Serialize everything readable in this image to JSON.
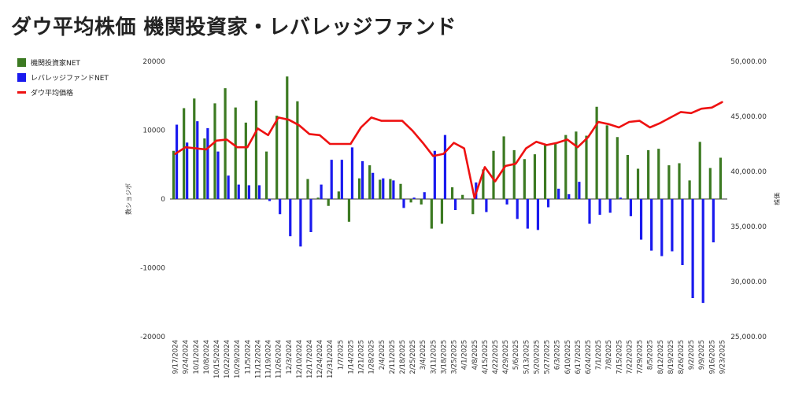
{
  "title": "ダウ平均株価 機関投資家・レバレッジファンド",
  "colors": {
    "institutional": "#3c7a22",
    "leveraged": "#1a1aee",
    "dow": "#ee1111"
  },
  "chart_data": {
    "type": "bar+line",
    "title": "ダウ平均株価 機関投資家・レバレッジファンド",
    "ylabel_left": "数ショジボ",
    "ylabel_right": "株価",
    "y_left_range": [
      -20000,
      20000
    ],
    "y_left_ticks": [
      "20000",
      "10000",
      "0",
      "-10000",
      "-20000"
    ],
    "y_right_range": [
      25000,
      50000
    ],
    "y_right_ticks": [
      "50,000.00",
      "45,000.00",
      "40,000.00",
      "35,000.00",
      "30,000.00",
      "25,000.00"
    ],
    "legend_position": "left",
    "categories": [
      "9/17/2024",
      "9/24/2024",
      "10/1/2024",
      "10/8/2024",
      "10/15/2024",
      "10/22/2024",
      "10/29/2024",
      "11/5/2024",
      "11/12/2024",
      "11/19/2024",
      "11/26/2024",
      "12/3/2024",
      "12/10/2024",
      "12/17/2024",
      "12/24/2024",
      "12/31/2024",
      "1/7/2025",
      "1/14/2025",
      "1/21/2025",
      "1/28/2025",
      "2/4/2025",
      "2/11/2025",
      "2/18/2025",
      "2/25/2025",
      "3/4/2025",
      "3/11/2025",
      "3/18/2025",
      "3/25/2025",
      "4/1/2025",
      "4/8/2025",
      "4/15/2025",
      "4/22/2025",
      "4/29/2025",
      "5/6/2025",
      "5/13/2025",
      "5/20/2025",
      "5/27/2025",
      "6/3/2025",
      "6/10/2025",
      "6/17/2025",
      "6/24/2025",
      "7/1/2025",
      "7/8/2025",
      "7/15/2025",
      "7/22/2025",
      "7/29/2025",
      "8/5/2025",
      "8/12/2025",
      "8/19/2025",
      "8/26/2025",
      "9/2/2025",
      "9/9/2025",
      "9/16/2025",
      "9/23/2025"
    ],
    "series": [
      {
        "name": "機関投資家NET",
        "type": "bar",
        "axis": "left",
        "values": [
          7000,
          13200,
          14600,
          8800,
          13900,
          16100,
          13300,
          11100,
          14300,
          6900,
          12100,
          17800,
          14200,
          2900,
          200,
          -1000,
          1100,
          -3300,
          3000,
          4900,
          2800,
          2900,
          2200,
          -500,
          -800,
          -4300,
          -3600,
          1700,
          600,
          -2200,
          4300,
          7000,
          9100,
          7100,
          5800,
          6500,
          7800,
          8000,
          9300,
          9800,
          9200,
          13400,
          10700,
          9000,
          6400,
          4400,
          7100,
          7300,
          4900,
          5200,
          2700,
          8300,
          4500,
          6000
        ]
      },
      {
        "name": "レバレッジファンドNET",
        "type": "bar",
        "axis": "left",
        "values": [
          10800,
          8200,
          11300,
          10300,
          6900,
          3400,
          2100,
          2000,
          2000,
          -300,
          -2200,
          -5400,
          -6900,
          -4800,
          2100,
          5700,
          5700,
          7500,
          5500,
          3800,
          3000,
          2700,
          -1300,
          200,
          1000,
          7000,
          9300,
          -1600,
          0,
          2400,
          -1900,
          0,
          -800,
          -2900,
          -4300,
          -4500,
          -1200,
          1500,
          700,
          2500,
          -3600,
          -2300,
          -2000,
          200,
          -2500,
          -5900,
          -7500,
          -8300,
          -7600,
          -9600,
          -14400,
          -15100,
          -6300,
          0
        ]
      },
      {
        "name": "ダウ平均価格",
        "type": "line",
        "axis": "right",
        "values": [
          41600,
          42200,
          42100,
          42000,
          42800,
          42900,
          42200,
          42200,
          43900,
          43300,
          44900,
          44700,
          44200,
          43400,
          43300,
          42500,
          42500,
          42500,
          44000,
          44900,
          44600,
          44600,
          44600,
          43700,
          42600,
          41400,
          41600,
          42600,
          42100,
          37600,
          40400,
          39100,
          40500,
          40700,
          42100,
          42700,
          42400,
          42600,
          42900,
          42200,
          43100,
          44500,
          44300,
          44000,
          44500,
          44600,
          44000,
          44400,
          44900,
          45400,
          45300,
          45700,
          45800,
          46300
        ]
      }
    ]
  }
}
